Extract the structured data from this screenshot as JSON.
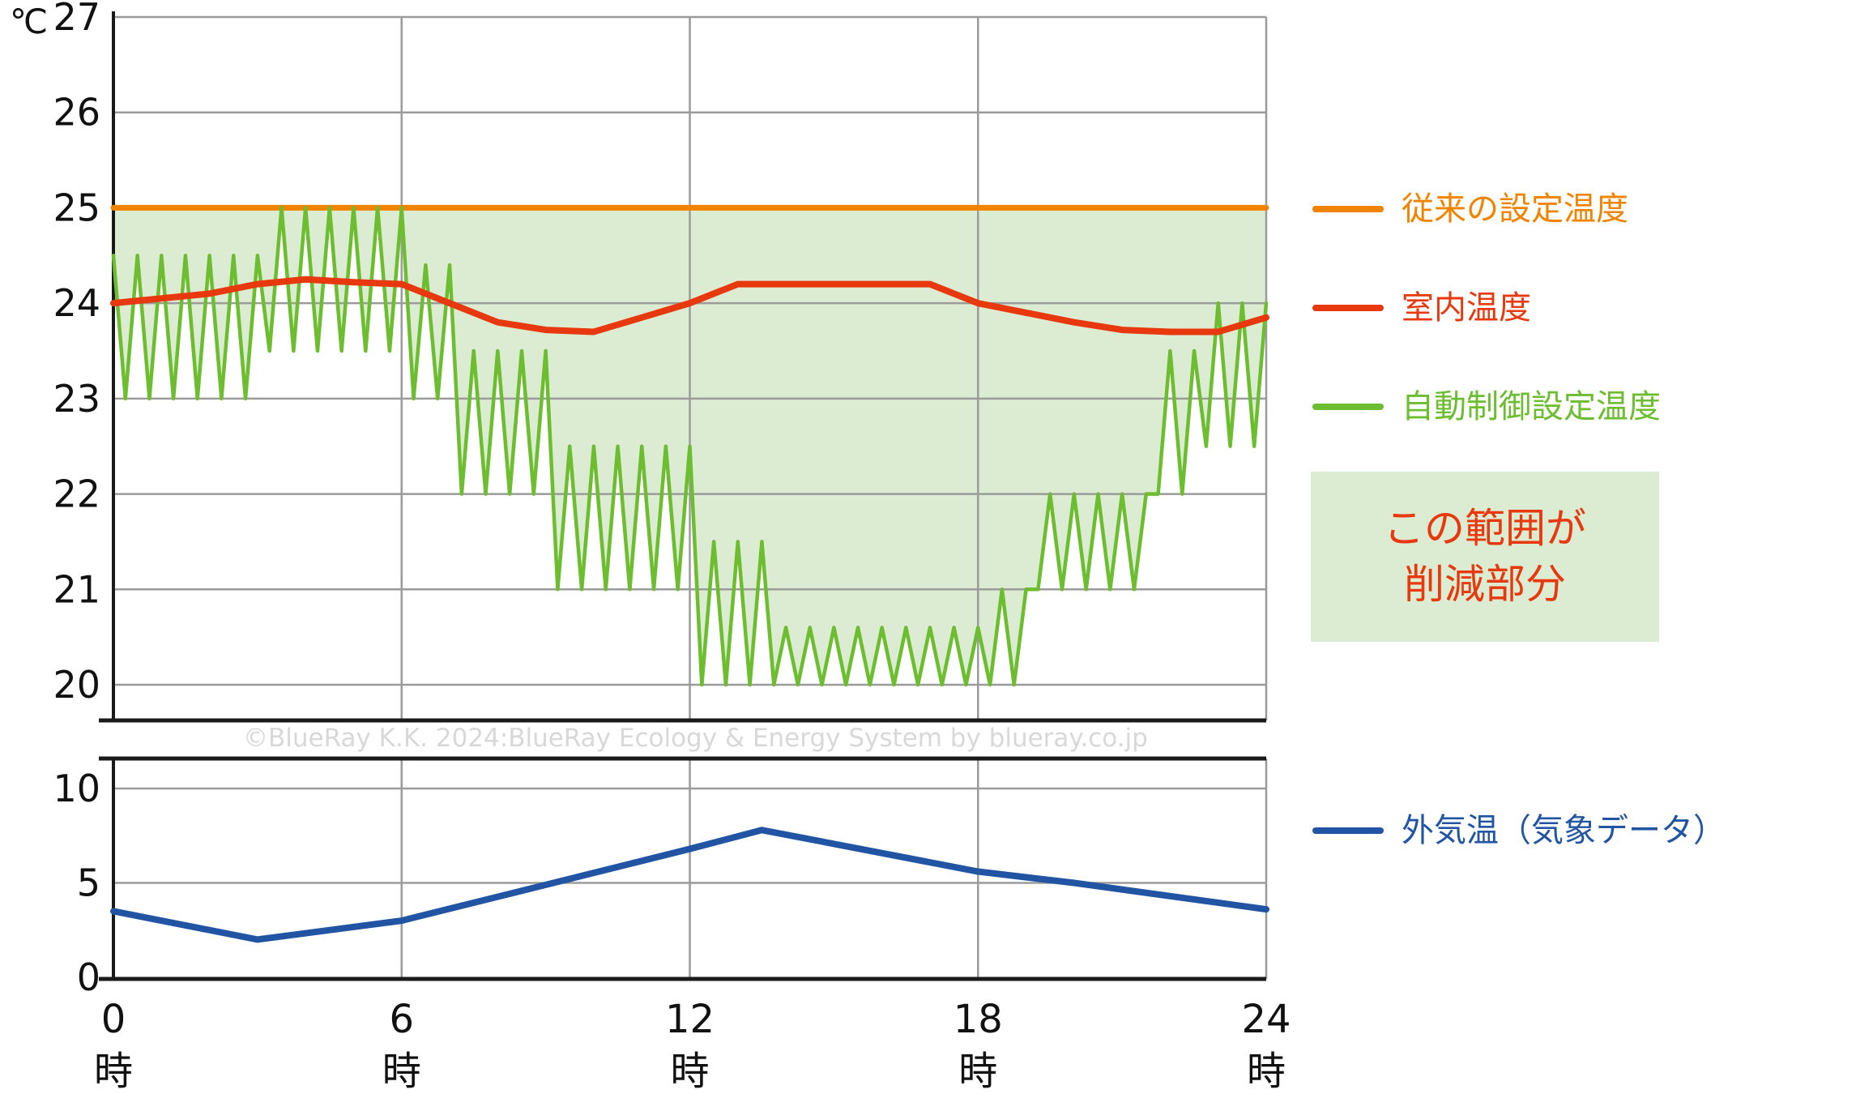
{
  "unit_label": "℃",
  "watermark": "©BlueRay K.K. 2024:BlueRay Ecology & Energy System by blueray.co.jp",
  "colors": {
    "conventional": "#F08300",
    "indoor": "#E8380D",
    "auto": "#6CBD2F",
    "outdoor": "#2155A3",
    "savings_fill": "#DCECD2",
    "savings_text": "#E8380D",
    "grid": "#9B9B9B",
    "axis": "#1A1A1A",
    "text": "#111111",
    "watermark": "#D8D8D8"
  },
  "legend": {
    "conventional": "従来の設定温度",
    "indoor": "室内温度",
    "auto": "自動制御設定温度",
    "savings_line1": "この範囲が",
    "savings_line2": "削減部分",
    "outdoor": "外気温（気象データ）"
  },
  "xaxis": {
    "ticks": [
      0,
      6,
      12,
      18,
      24
    ],
    "suffix": "時"
  },
  "chart_data": [
    {
      "type": "line",
      "title": "",
      "xlabel": "時",
      "ylabel": "℃",
      "xlim": [
        0,
        24
      ],
      "ylim": [
        20,
        27
      ],
      "yticks": [
        20,
        21,
        22,
        23,
        24,
        25,
        26,
        27
      ],
      "xticks": [
        0,
        6,
        12,
        18,
        24
      ],
      "grid": true,
      "legend_position": "right",
      "fill_between": {
        "upper": "conventional (25℃)",
        "lower": "auto control zigzag line",
        "meaning": "この範囲が削減部分",
        "color": "#DCECD2"
      },
      "series": [
        {
          "id": "conventional",
          "name": "従来の設定温度",
          "color": "#F08300",
          "points": [
            [
              0,
              25.0
            ],
            [
              24,
              25.0
            ]
          ]
        },
        {
          "id": "indoor",
          "name": "室内温度",
          "color": "#E8380D",
          "points": [
            [
              0,
              24.0
            ],
            [
              1,
              24.05
            ],
            [
              2,
              24.1
            ],
            [
              3,
              24.2
            ],
            [
              4,
              24.25
            ],
            [
              5,
              24.22
            ],
            [
              6,
              24.2
            ],
            [
              7,
              24.0
            ],
            [
              8,
              23.8
            ],
            [
              9,
              23.72
            ],
            [
              10,
              23.7
            ],
            [
              11,
              23.85
            ],
            [
              12,
              24.0
            ],
            [
              13,
              24.2
            ],
            [
              14,
              24.2
            ],
            [
              15,
              24.2
            ],
            [
              16,
              24.2
            ],
            [
              17,
              24.2
            ],
            [
              18,
              24.0
            ],
            [
              19,
              23.9
            ],
            [
              20,
              23.8
            ],
            [
              21,
              23.72
            ],
            [
              22,
              23.7
            ],
            [
              23,
              23.7
            ],
            [
              24,
              23.85
            ]
          ]
        },
        {
          "id": "auto",
          "name": "自動制御設定温度",
          "color": "#6CBD2F",
          "pattern": "triangle_oscillation",
          "cycles_per_hour": 2,
          "band": [
            [
              0,
              3,
              23.0,
              24.5
            ],
            [
              3,
              6,
              23.5,
              25.0
            ],
            [
              6,
              7,
              23.0,
              24.4
            ],
            [
              7,
              9,
              22.0,
              23.5
            ],
            [
              9,
              12,
              21.0,
              22.5
            ],
            [
              12,
              13.5,
              20.0,
              21.5
            ],
            [
              13.5,
              18,
              20.0,
              20.6
            ],
            [
              18,
              19,
              20.0,
              21.0
            ],
            [
              19,
              21.5,
              21.0,
              22.0
            ],
            [
              21.5,
              22.5,
              22.0,
              23.5
            ],
            [
              22.5,
              24,
              22.5,
              24.0
            ]
          ]
        }
      ]
    },
    {
      "type": "line",
      "title": "",
      "xlabel": "時",
      "ylabel": "",
      "xlim": [
        0,
        24
      ],
      "ylim": [
        0,
        11.6
      ],
      "yticks": [
        0,
        5,
        10
      ],
      "xticks": [
        0,
        6,
        12,
        18,
        24
      ],
      "grid": true,
      "legend_position": "right",
      "series": [
        {
          "id": "outdoor",
          "name": "外気温（気象データ）",
          "color": "#2155A3",
          "points": [
            [
              0,
              3.5
            ],
            [
              3,
              2.0
            ],
            [
              6,
              3.0
            ],
            [
              9,
              4.9
            ],
            [
              12,
              6.8
            ],
            [
              13.5,
              7.8
            ],
            [
              18,
              5.6
            ],
            [
              20,
              5.0
            ],
            [
              24,
              3.6
            ]
          ]
        }
      ]
    }
  ]
}
